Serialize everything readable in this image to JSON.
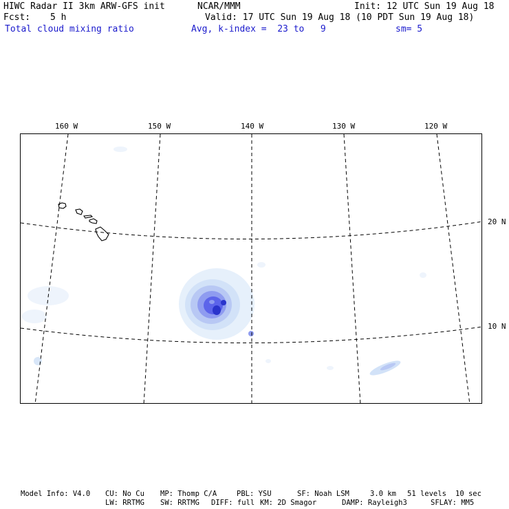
{
  "header": {
    "title_left": "HIWC Radar II 3km ARW-GFS init",
    "title_center": "NCAR/MMM",
    "init": "Init: 12 UTC Sun 19 Aug 18",
    "fcst_label": "Fcst:",
    "fcst_value": "5 h",
    "valid": "Valid: 17 UTC Sun 19 Aug 18 (10 PDT Sun 19 Aug 18)",
    "field_name": "Total cloud mixing ratio",
    "avg_info": "Avg, k-index =  23 to   9",
    "smoothing": "sm= 5"
  },
  "map": {
    "longitude_labels": [
      "160 W",
      "150 W",
      "140 W",
      "130 W",
      "120 W"
    ],
    "latitude_labels": [
      "20 N",
      "10 N"
    ],
    "colors": {
      "light": "#e6f0fb",
      "pale": "#d2e2f8",
      "medium_light": "#b8c8f4",
      "medium": "#8f9cf0",
      "dark": "#5c64ea",
      "core": "#2a34cc",
      "grid": "#000000",
      "coast": "#000000"
    }
  },
  "footer": {
    "model_info": "Model Info: V4.0",
    "cu": "CU: No Cu",
    "mp": "MP: Thomp C/A",
    "pbl": "PBL: YSU",
    "sf": "SF: Noah LSM",
    "resolution": "3.0 km",
    "levels": "51 levels",
    "timestep": "10 sec",
    "lw": "LW: RRTMG",
    "sw": "SW: RRTMG",
    "diff": "DIFF: full",
    "km": "KM: 2D Smagor",
    "damp": "DAMP: Rayleigh3",
    "sflay": "SFLAY: MM5"
  }
}
